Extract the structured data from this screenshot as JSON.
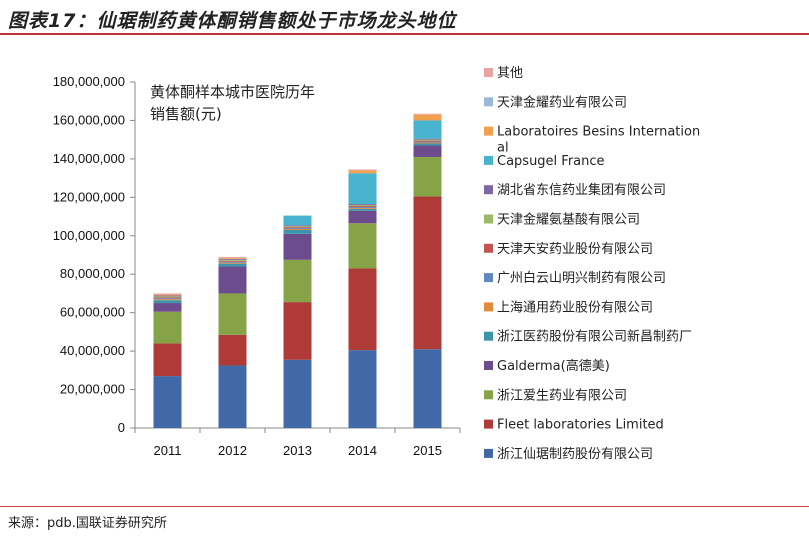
{
  "header": {
    "title": "图表17：仙琚制药黄体酮销售额处于市场龙头地位"
  },
  "footer": {
    "source": "来源：pdb.国联证券研究所"
  },
  "chart_data": {
    "type": "bar",
    "stacked": true,
    "title_lines": [
      "黄体酮样本城市医院历年",
      "销售额(元)"
    ],
    "xlabel": "",
    "ylabel": "",
    "ylim": [
      0,
      180000000
    ],
    "ytick_step": 20000000,
    "yticks": [
      "0",
      "20,000,000",
      "40,000,000",
      "60,000,000",
      "80,000,000",
      "100,000,000",
      "120,000,000",
      "140,000,000",
      "160,000,000",
      "180,000,000"
    ],
    "categories": [
      "2011",
      "2012",
      "2013",
      "2014",
      "2015"
    ],
    "legend_position": "right",
    "series": [
      {
        "name": "浙江仙琚制药股份有限公司",
        "color": "#4169a8",
        "values": [
          27000000,
          32500000,
          35500000,
          40500000,
          41000000
        ]
      },
      {
        "name": "Fleet laboratories Limited",
        "color": "#ae3b38",
        "values": [
          17000000,
          16000000,
          30000000,
          42500000,
          79500000
        ]
      },
      {
        "name": "浙江爱生药业有限公司",
        "color": "#86a447",
        "values": [
          16500000,
          21500000,
          22000000,
          23500000,
          20500000
        ]
      },
      {
        "name": "Galderma(高德美)",
        "color": "#6c4c8c",
        "values": [
          4500000,
          14000000,
          13500000,
          6500000,
          6000000
        ]
      },
      {
        "name": "浙江医药股份有限公司新昌制药厂",
        "color": "#3c95aa",
        "values": [
          1500000,
          1500000,
          2000000,
          1000000,
          1000000
        ]
      },
      {
        "name": "上海通用药业股份有限公司",
        "color": "#e08a3c",
        "values": [
          500000,
          500000,
          500000,
          500000,
          500000
        ]
      },
      {
        "name": "广州白云山明兴制药有限公司",
        "color": "#5f87c0",
        "values": [
          500000,
          500000,
          500000,
          500000,
          500000
        ]
      },
      {
        "name": "天津天安药业股份有限公司",
        "color": "#c25452",
        "values": [
          500000,
          500000,
          500000,
          500000,
          500000
        ]
      },
      {
        "name": "天津金耀氨基酸有限公司",
        "color": "#9cb965",
        "values": [
          500000,
          500000,
          500000,
          500000,
          500000
        ]
      },
      {
        "name": "湖北省东信药业集团有限公司",
        "color": "#7f67a1",
        "values": [
          500000,
          500000,
          500000,
          500000,
          500000
        ]
      },
      {
        "name": "Capsugel France",
        "color": "#47b3cf",
        "values": [
          0,
          0,
          5000000,
          16000000,
          9500000
        ]
      },
      {
        "name": "Laboratoires Besins International",
        "color": "#f0a04f",
        "values": [
          500000,
          500000,
          0,
          1500000,
          3000000
        ]
      },
      {
        "name": "天津金耀药业有限公司",
        "color": "#9ab8dc",
        "values": [
          0,
          0,
          0,
          0,
          0
        ]
      },
      {
        "name": "其他",
        "color": "#e7a4a3",
        "values": [
          500000,
          500000,
          0,
          500000,
          500000
        ]
      }
    ]
  }
}
